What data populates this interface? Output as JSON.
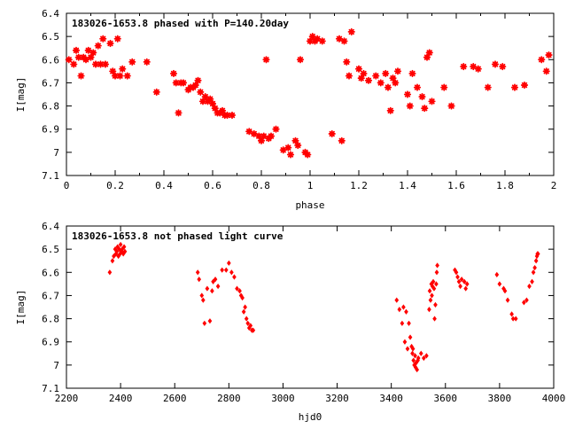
{
  "chart_data": [
    {
      "type": "scatter",
      "title": "183026-1653.8 phased with P=140.20day",
      "xlabel": "phase",
      "ylabel": "I[mag]",
      "xlim": [
        0,
        2
      ],
      "ylim": [
        7.1,
        6.4
      ],
      "y_inverted": true,
      "grid": false,
      "marker_color": "#ff0000",
      "marker": "star",
      "xticks": [
        "0",
        "0.2",
        "0.4",
        "0.6",
        "0.8",
        "1",
        "1.2",
        "1.4",
        "1.6",
        "1.8",
        "2"
      ],
      "yticks": [
        "6.4",
        "6.5",
        "6.6",
        "6.7",
        "6.8",
        "6.9",
        "7",
        "7.1"
      ],
      "x": [
        0.01,
        0.03,
        0.04,
        0.05,
        0.06,
        0.07,
        0.08,
        0.09,
        0.1,
        0.11,
        0.12,
        0.13,
        0.14,
        0.15,
        0.16,
        0.18,
        0.19,
        0.2,
        0.21,
        0.22,
        0.23,
        0.25,
        0.27,
        0.33,
        0.37,
        0.44,
        0.45,
        0.46,
        0.47,
        0.48,
        0.5,
        0.51,
        0.52,
        0.53,
        0.54,
        0.55,
        0.56,
        0.57,
        0.58,
        0.59,
        0.6,
        0.61,
        0.62,
        0.63,
        0.64,
        0.65,
        0.66,
        0.68,
        0.75,
        0.77,
        0.79,
        0.8,
        0.81,
        0.82,
        0.83,
        0.84,
        0.86,
        0.89,
        0.91,
        0.92,
        0.94,
        0.95,
        0.96,
        0.98,
        0.99,
        1.0,
        1.01,
        1.02,
        1.03,
        1.05,
        1.09,
        1.12,
        1.13,
        1.14,
        1.15,
        1.16,
        1.17,
        1.2,
        1.21,
        1.22,
        1.24,
        1.27,
        1.29,
        1.31,
        1.32,
        1.33,
        1.34,
        1.35,
        1.36,
        1.4,
        1.41,
        1.42,
        1.44,
        1.46,
        1.47,
        1.48,
        1.49,
        1.5,
        1.55,
        1.58,
        1.63,
        1.67,
        1.69,
        1.73,
        1.76,
        1.79,
        1.84,
        1.88,
        1.95,
        1.97,
        1.98
      ],
      "y": [
        6.6,
        6.62,
        6.56,
        6.59,
        6.67,
        6.59,
        6.6,
        6.56,
        6.59,
        6.57,
        6.62,
        6.54,
        6.62,
        6.51,
        6.62,
        6.53,
        6.65,
        6.67,
        6.51,
        6.67,
        6.64,
        6.67,
        6.61,
        6.61,
        6.74,
        6.66,
        6.7,
        6.83,
        6.7,
        6.7,
        6.73,
        6.72,
        6.72,
        6.71,
        6.69,
        6.74,
        6.78,
        6.76,
        6.78,
        6.77,
        6.79,
        6.81,
        6.83,
        6.83,
        6.82,
        6.84,
        6.84,
        6.84,
        6.91,
        6.92,
        6.93,
        6.95,
        6.93,
        6.6,
        6.94,
        6.93,
        6.9,
        6.99,
        6.98,
        7.01,
        6.95,
        6.97,
        6.6,
        7.0,
        7.01,
        6.52,
        6.5,
        6.52,
        6.51,
        6.52,
        6.92,
        6.51,
        6.95,
        6.52,
        6.61,
        6.67,
        6.48,
        6.64,
        6.68,
        6.66,
        6.69,
        6.67,
        6.7,
        6.66,
        6.72,
        6.82,
        6.68,
        6.7,
        6.65,
        6.75,
        6.8,
        6.66,
        6.72,
        6.76,
        6.81,
        6.59,
        6.57,
        6.78,
        6.72,
        6.8,
        6.63,
        6.63,
        6.64,
        6.72,
        6.62,
        6.63,
        6.72,
        6.71,
        6.6,
        6.65,
        6.58
      ]
    },
    {
      "type": "scatter",
      "title": "183026-1653.8 not phased light curve",
      "xlabel": "hjd0",
      "ylabel": "I[mag]",
      "xlim": [
        2200,
        4000
      ],
      "ylim": [
        7.1,
        6.4
      ],
      "y_inverted": true,
      "grid": false,
      "marker_color": "#ff0000",
      "marker": "diamond",
      "xticks": [
        "2200",
        "2400",
        "2600",
        "2800",
        "3000",
        "3200",
        "3400",
        "3600",
        "3800",
        "4000"
      ],
      "yticks": [
        "6.4",
        "6.5",
        "6.6",
        "6.7",
        "6.8",
        "6.9",
        "7",
        "7.1"
      ],
      "x": [
        2360,
        2370,
        2375,
        2380,
        2383,
        2386,
        2389,
        2392,
        2395,
        2398,
        2400,
        2403,
        2406,
        2410,
        2413,
        2416,
        2685,
        2690,
        2700,
        2705,
        2710,
        2720,
        2730,
        2738,
        2742,
        2750,
        2760,
        2775,
        2790,
        2800,
        2810,
        2820,
        2830,
        2840,
        2845,
        2850,
        2855,
        2860,
        2865,
        2870,
        2875,
        2880,
        2885,
        2890,
        3420,
        3430,
        3440,
        3445,
        3450,
        3455,
        3460,
        3465,
        3470,
        3475,
        3478,
        3480,
        3482,
        3485,
        3488,
        3490,
        3492,
        3495,
        3498,
        3500,
        3510,
        3520,
        3530,
        3540,
        3542,
        3545,
        3548,
        3550,
        3552,
        3555,
        3558,
        3560,
        3563,
        3566,
        3568,
        3570,
        3635,
        3640,
        3645,
        3650,
        3655,
        3660,
        3670,
        3675,
        3680,
        3790,
        3800,
        3815,
        3820,
        3830,
        3845,
        3850,
        3860,
        3890,
        3900,
        3910,
        3920,
        3925,
        3930,
        3935,
        3938,
        3940,
        3942
      ],
      "y": [
        6.6,
        6.55,
        6.53,
        6.5,
        6.52,
        6.51,
        6.49,
        6.53,
        6.5,
        6.52,
        6.48,
        6.51,
        6.5,
        6.52,
        6.49,
        6.51,
        6.6,
        6.63,
        6.7,
        6.72,
        6.82,
        6.67,
        6.81,
        6.68,
        6.64,
        6.63,
        6.66,
        6.59,
        6.59,
        6.56,
        6.6,
        6.62,
        6.67,
        6.68,
        6.7,
        6.71,
        6.77,
        6.75,
        6.8,
        6.82,
        6.84,
        6.83,
        6.85,
        6.85,
        6.72,
        6.76,
        6.82,
        6.75,
        6.9,
        6.77,
        6.93,
        6.82,
        6.88,
        6.92,
        6.95,
        6.93,
        6.98,
        7.0,
        6.96,
        7.01,
        6.99,
        7.02,
        6.98,
        6.97,
        6.95,
        6.97,
        6.96,
        6.76,
        6.68,
        6.72,
        6.65,
        6.7,
        6.66,
        6.64,
        6.67,
        6.8,
        6.74,
        6.65,
        6.6,
        6.57,
        6.59,
        6.6,
        6.62,
        6.64,
        6.66,
        6.63,
        6.64,
        6.67,
        6.65,
        6.61,
        6.65,
        6.67,
        6.68,
        6.72,
        6.78,
        6.8,
        6.8,
        6.73,
        6.72,
        6.66,
        6.64,
        6.6,
        6.58,
        6.55,
        6.53,
        6.52,
        6.52
      ]
    }
  ]
}
